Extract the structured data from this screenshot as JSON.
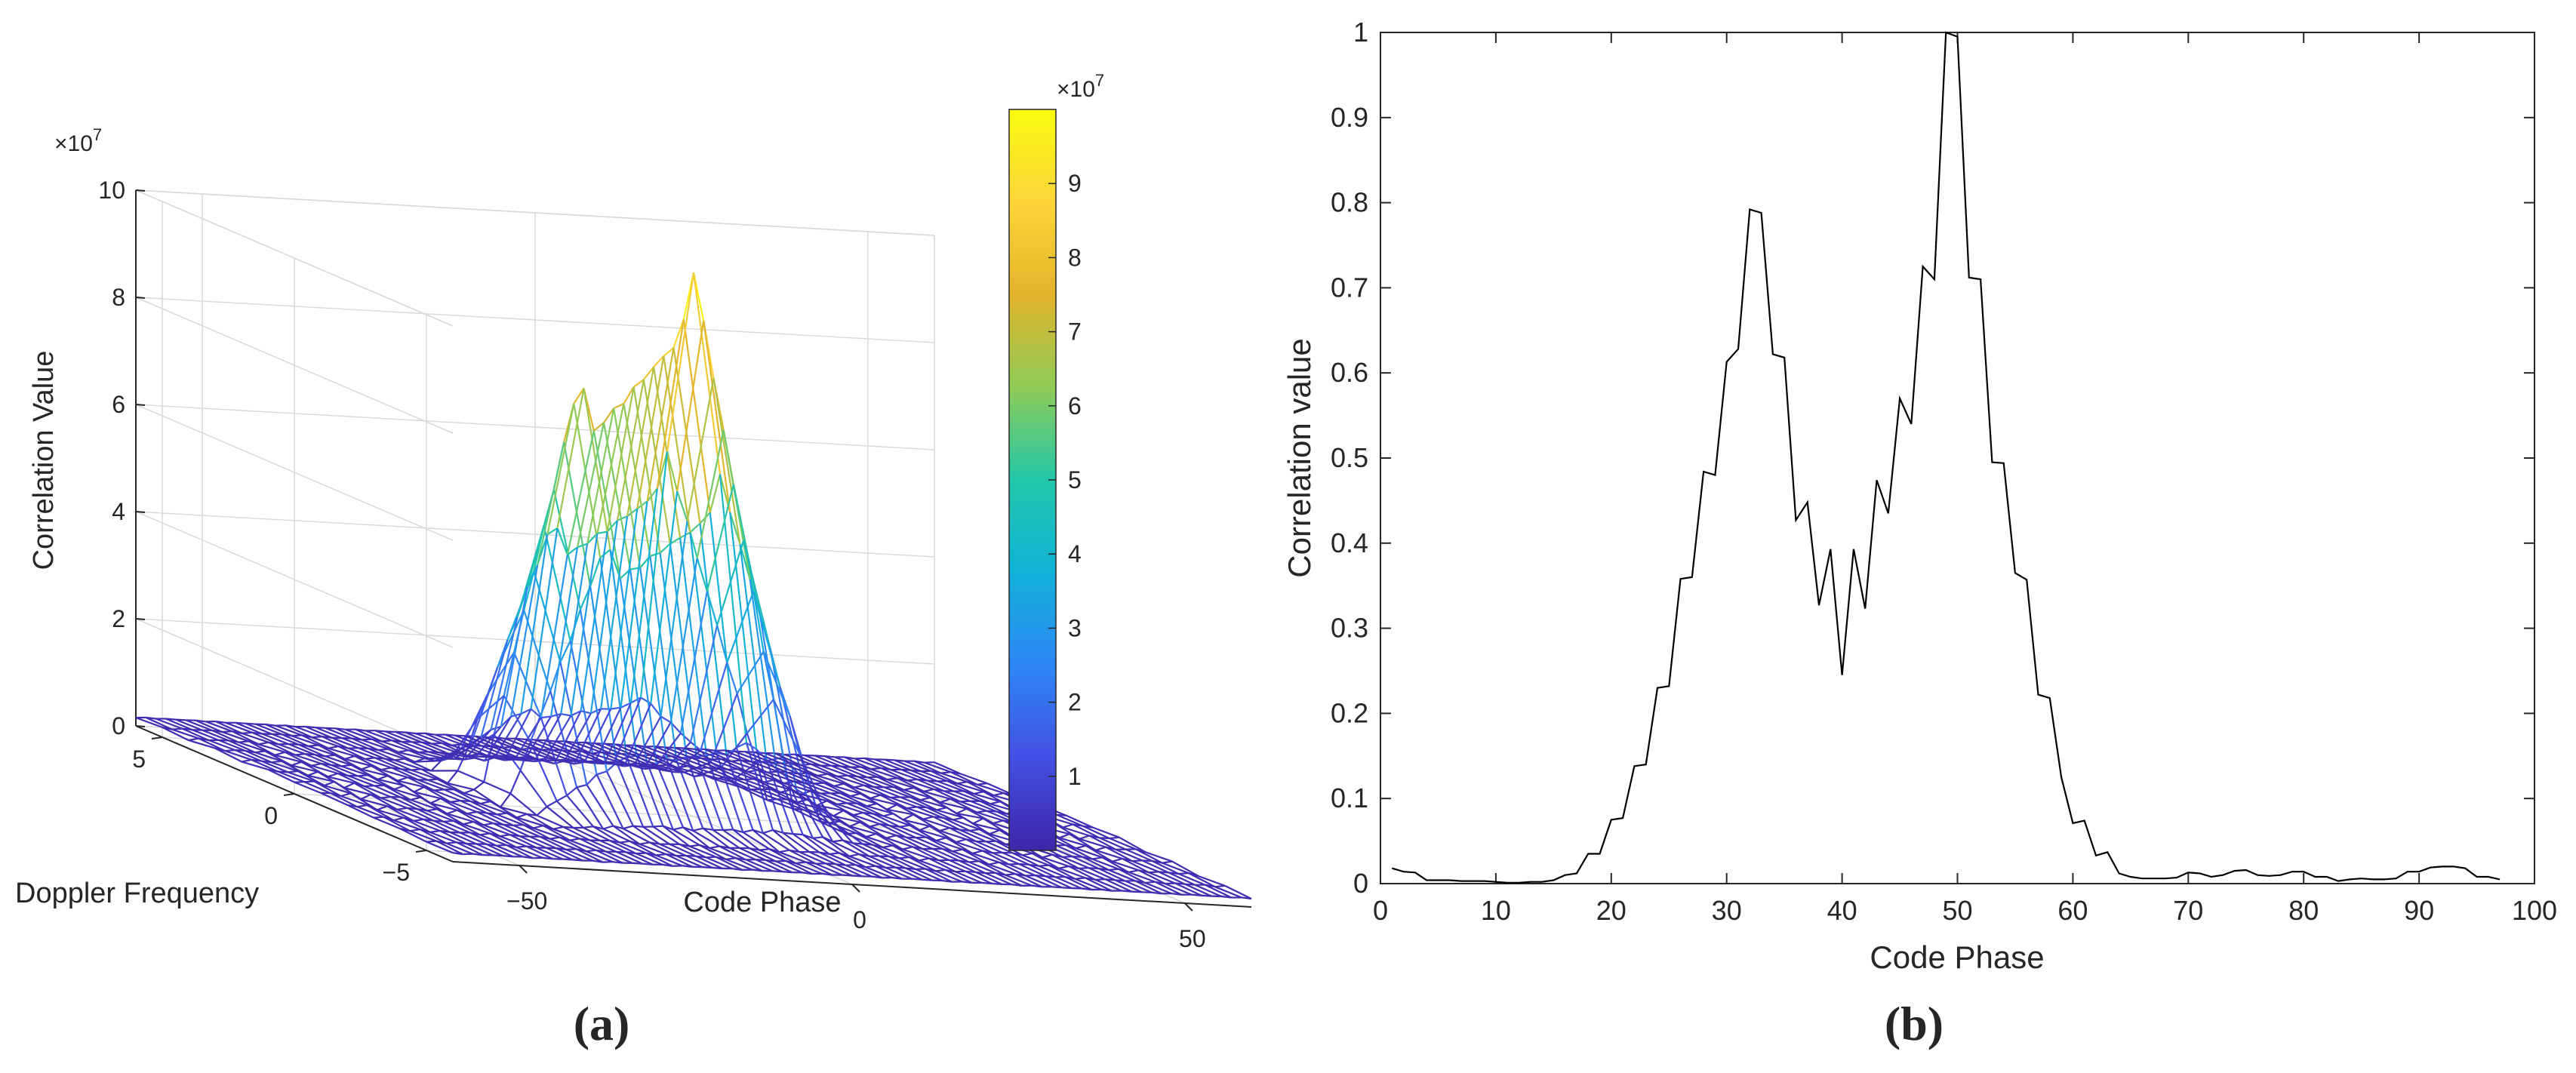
{
  "panel_labels": {
    "a": "(a)",
    "b": "(b)"
  },
  "chart_data": [
    {
      "id": "a",
      "type": "surface3d",
      "xlabel": "Code Phase",
      "ylabel": "Doppler Frequency",
      "zlabel": "Correlation Value",
      "z_exponent": "×10",
      "z_exponent_power": "7",
      "x_range": [
        -60,
        60
      ],
      "y_range": [
        -6,
        6
      ],
      "z_range": [
        0,
        10
      ],
      "x_ticks": [
        {
          "v": -50,
          "label": "−50"
        },
        {
          "v": 0,
          "label": "0"
        },
        {
          "v": 50,
          "label": "50"
        }
      ],
      "y_ticks": [
        {
          "v": -5,
          "label": "−5"
        },
        {
          "v": 0,
          "label": "0"
        },
        {
          "v": 5,
          "label": "5"
        }
      ],
      "z_ticks": [
        {
          "v": 0,
          "label": "0"
        },
        {
          "v": 2,
          "label": "2"
        },
        {
          "v": 4,
          "label": "4"
        },
        {
          "v": 6,
          "label": "6"
        },
        {
          "v": 8,
          "label": "8"
        },
        {
          "v": 10,
          "label": "10"
        }
      ],
      "peaks": [
        {
          "x": 0,
          "y": 0,
          "z": 10
        },
        {
          "x": -17,
          "y": 0,
          "z": 7.9
        }
      ],
      "colormap": [
        "#3e26a8",
        "#4350e5",
        "#2e87f7",
        "#12b1d8",
        "#22c7a8",
        "#8ecb56",
        "#e2b42a",
        "#fbd53a",
        "#f9fb0e"
      ],
      "colorbar": {
        "range": [
          0,
          10
        ],
        "exponent": "×10",
        "exponent_power": "7",
        "ticks": [
          {
            "v": 1,
            "label": "1"
          },
          {
            "v": 2,
            "label": "2"
          },
          {
            "v": 3,
            "label": "3"
          },
          {
            "v": 4,
            "label": "4"
          },
          {
            "v": 5,
            "label": "5"
          },
          {
            "v": 6,
            "label": "6"
          },
          {
            "v": 7,
            "label": "7"
          },
          {
            "v": 8,
            "label": "8"
          },
          {
            "v": 9,
            "label": "9"
          }
        ]
      },
      "grid": true
    },
    {
      "id": "b",
      "type": "line",
      "xlabel": "Code Phase",
      "ylabel": "Correlation value",
      "xlim": [
        0,
        100
      ],
      "ylim": [
        0,
        1
      ],
      "x_ticks": [
        0,
        10,
        20,
        30,
        40,
        50,
        60,
        70,
        80,
        90,
        100
      ],
      "y_ticks": [
        {
          "v": 0,
          "label": "0"
        },
        {
          "v": 0.1,
          "label": "0.1"
        },
        {
          "v": 0.2,
          "label": "0.2"
        },
        {
          "v": 0.3,
          "label": "0.3"
        },
        {
          "v": 0.4,
          "label": "0.4"
        },
        {
          "v": 0.5,
          "label": "0.5"
        },
        {
          "v": 0.6,
          "label": "0.6"
        },
        {
          "v": 0.7,
          "label": "0.7"
        },
        {
          "v": 0.8,
          "label": "0.8"
        },
        {
          "v": 0.9,
          "label": "0.9"
        },
        {
          "v": 1,
          "label": "1"
        }
      ],
      "color": "#000000",
      "grid": false,
      "x": [
        1,
        2,
        3,
        4,
        5,
        6,
        7,
        8,
        9,
        10,
        11,
        12,
        13,
        14,
        15,
        16,
        17,
        18,
        19,
        20,
        21,
        22,
        23,
        24,
        25,
        26,
        27,
        28,
        29,
        30,
        31,
        32,
        33,
        34,
        35,
        36,
        37,
        38,
        39,
        40,
        41,
        42,
        43,
        44,
        45,
        46,
        47,
        48,
        49,
        50,
        51,
        52,
        53,
        54,
        55,
        56,
        57,
        58,
        59,
        60,
        61,
        62,
        63,
        64,
        65,
        66,
        67,
        68,
        69,
        70,
        71,
        72,
        73,
        74,
        75,
        76,
        77,
        78,
        79,
        80,
        81,
        82,
        83,
        84,
        85,
        86,
        87,
        88,
        89,
        90,
        91,
        92,
        93,
        94,
        95,
        96,
        97
      ],
      "y": [
        0.018,
        0.014,
        0.013,
        0.004,
        0.004,
        0.004,
        0.003,
        0.003,
        0.003,
        0.002,
        0.001,
        0.001,
        0.002,
        0.002,
        0.004,
        0.01,
        0.012,
        0.035,
        0.035,
        0.075,
        0.077,
        0.138,
        0.14,
        0.23,
        0.232,
        0.358,
        0.36,
        0.484,
        0.48,
        0.613,
        0.628,
        0.792,
        0.788,
        0.622,
        0.618,
        0.427,
        0.448,
        0.327,
        0.393,
        0.245,
        0.393,
        0.323,
        0.474,
        0.435,
        0.57,
        0.54,
        0.725,
        0.71,
        1.0,
        0.995,
        0.712,
        0.71,
        0.495,
        0.494,
        0.365,
        0.357,
        0.222,
        0.218,
        0.125,
        0.071,
        0.074,
        0.033,
        0.037,
        0.012,
        0.008,
        0.006,
        0.006,
        0.006,
        0.007,
        0.013,
        0.012,
        0.008,
        0.01,
        0.015,
        0.016,
        0.01,
        0.009,
        0.01,
        0.014,
        0.014,
        0.008,
        0.008,
        0.003,
        0.005,
        0.006,
        0.005,
        0.005,
        0.006,
        0.014,
        0.014,
        0.019,
        0.02,
        0.02,
        0.018,
        0.008,
        0.008,
        0.005
      ]
    }
  ]
}
